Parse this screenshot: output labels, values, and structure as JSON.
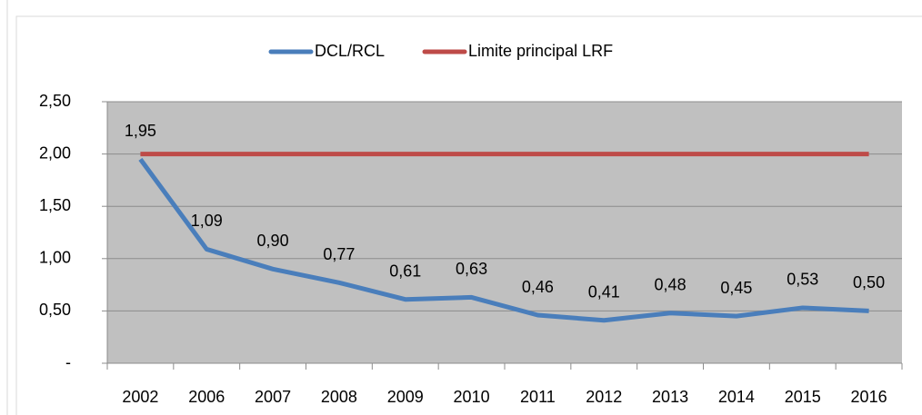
{
  "chart_data": {
    "type": "line",
    "categories": [
      "2002",
      "2006",
      "2007",
      "2008",
      "2009",
      "2010",
      "2011",
      "2012",
      "2013",
      "2014",
      "2015",
      "2016"
    ],
    "series": [
      {
        "name": "DCL/RCL",
        "color": "#4a7ebb",
        "values": [
          1.95,
          1.09,
          0.9,
          0.77,
          0.61,
          0.63,
          0.46,
          0.41,
          0.48,
          0.45,
          0.53,
          0.5
        ],
        "value_labels": [
          "1,95",
          "1,09",
          "0,90",
          "0,77",
          "0,61",
          "0,63",
          "0,46",
          "0,41",
          "0,48",
          "0,45",
          "0,53",
          "0,50"
        ]
      },
      {
        "name": "Limite principal LRF",
        "color": "#be4b48",
        "values": [
          2,
          2,
          2,
          2,
          2,
          2,
          2,
          2,
          2,
          2,
          2,
          2
        ]
      }
    ],
    "ylim": [
      0,
      2.5
    ],
    "yticks": [
      {
        "value": 0,
        "label": "-"
      },
      {
        "value": 0.5,
        "label": "0,50"
      },
      {
        "value": 1,
        "label": "1,00"
      },
      {
        "value": 1.5,
        "label": "1,50"
      },
      {
        "value": 2,
        "label": "2,00"
      },
      {
        "value": 2.5,
        "label": "2,50"
      }
    ],
    "grid": true,
    "legend": "top"
  }
}
